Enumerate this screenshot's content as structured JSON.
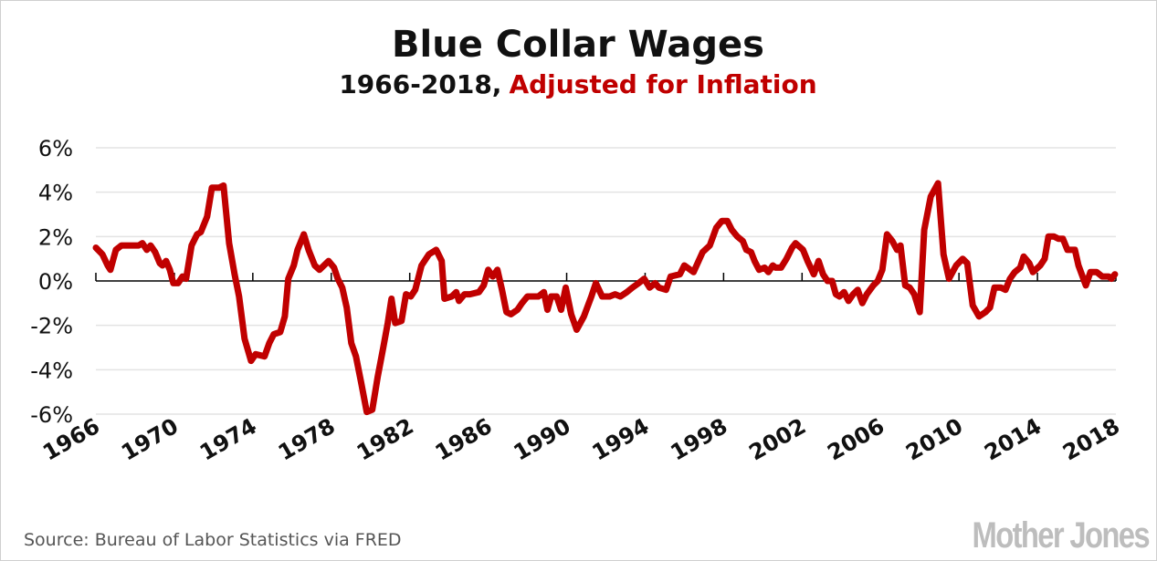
{
  "chart_data": {
    "type": "line",
    "title": "Blue Collar Wages",
    "subtitle_part1": "1966-2018,",
    "subtitle_part2": "Adjusted for Inflation",
    "xlabel": "",
    "ylabel": "",
    "xlim": [
      1966,
      2018
    ],
    "ylim": [
      -6,
      6
    ],
    "x_ticks": [
      "1966",
      "1970",
      "1974",
      "1978",
      "1982",
      "1986",
      "1990",
      "1994",
      "1998",
      "2002",
      "2006",
      "2010",
      "2014",
      "2018"
    ],
    "y_ticks": [
      "6%",
      "4%",
      "2%",
      "0%",
      "-2%",
      "-4%",
      "-6%"
    ],
    "grid": true,
    "line_color": "#c00000",
    "subtitle_accent_color": "#c00000",
    "series": [
      {
        "x": [
          1966.0,
          1966.33,
          1966.6,
          1966.74,
          1967.02,
          1967.3,
          1967.63,
          1967.95,
          1968.19,
          1968.37,
          1968.6,
          1968.79,
          1969.02,
          1969.26,
          1969.4,
          1969.58,
          1969.77,
          1969.95,
          1970.19,
          1970.42,
          1970.6,
          1970.88,
          1971.16,
          1971.35,
          1971.67,
          1971.91,
          1972.28,
          1972.51,
          1972.79,
          1973.07,
          1973.3,
          1973.58,
          1973.91,
          1974.14,
          1974.6,
          1974.84,
          1975.07,
          1975.4,
          1975.63,
          1975.81,
          1976.09,
          1976.28,
          1976.6,
          1976.84,
          1977.16,
          1977.4,
          1977.63,
          1977.86,
          1978.14,
          1978.33,
          1978.56,
          1978.79,
          1979.02,
          1979.26,
          1979.53,
          1979.81,
          1980.09,
          1980.37,
          1980.65,
          1980.88,
          1981.07,
          1981.26,
          1981.58,
          1981.81,
          1982.05,
          1982.28,
          1982.6,
          1982.98,
          1983.35,
          1983.63,
          1983.77,
          1984.14,
          1984.37,
          1984.51,
          1984.79,
          1985.07,
          1985.53,
          1985.77,
          1986.0,
          1986.23,
          1986.47,
          1986.7,
          1986.93,
          1987.16,
          1987.49,
          1987.72,
          1988.0,
          1988.23,
          1988.56,
          1988.84,
          1989.02,
          1989.21,
          1989.49,
          1989.72,
          1989.95,
          1990.23,
          1990.51,
          1990.88,
          1991.26,
          1991.49,
          1991.81,
          1992.19,
          1992.47,
          1992.74,
          1993.07,
          1993.35,
          1993.67,
          1993.95,
          1994.23,
          1994.51,
          1994.7,
          1995.07,
          1995.3,
          1995.77,
          1996.0,
          1996.47,
          1996.93,
          1997.3,
          1997.63,
          1997.91,
          1998.19,
          1998.42,
          1998.7,
          1998.98,
          1999.16,
          1999.4,
          1999.58,
          1999.81,
          2000.09,
          2000.28,
          2000.51,
          2000.65,
          2000.93,
          2001.21,
          2001.49,
          2001.67,
          2002.05,
          2002.28,
          2002.6,
          2002.84,
          2003.07,
          2003.3,
          2003.53,
          2003.72,
          2003.91,
          2004.14,
          2004.37,
          2004.6,
          2004.84,
          2005.07,
          2005.3,
          2005.63,
          2005.86,
          2006.09,
          2006.33,
          2006.6,
          2006.84,
          2007.02,
          2007.26,
          2007.49,
          2007.72,
          2008.0,
          2008.23,
          2008.56,
          2008.93,
          2009.21,
          2009.49,
          2009.86,
          2010.19,
          2010.42,
          2010.7,
          2011.02,
          2011.35,
          2011.58,
          2011.81,
          2012.14,
          2012.37,
          2012.6,
          2012.84,
          2013.12,
          2013.3,
          2013.58,
          2013.77,
          2014.14,
          2014.37,
          2014.56,
          2014.84,
          2015.07,
          2015.3,
          2015.53,
          2015.91,
          2016.09,
          2016.47,
          2016.7,
          2017.02,
          2017.3,
          2017.63,
          2017.77,
          2017.95
        ],
        "y": [
          1.5,
          1.2,
          0.7,
          0.5,
          1.4,
          1.6,
          1.6,
          1.6,
          1.6,
          1.7,
          1.4,
          1.6,
          1.3,
          0.8,
          0.7,
          0.9,
          0.5,
          -0.1,
          -0.1,
          0.2,
          0.1,
          1.6,
          2.1,
          2.2,
          2.9,
          4.2,
          4.2,
          4.3,
          1.7,
          0.3,
          -0.7,
          -2.6,
          -3.6,
          -3.3,
          -3.4,
          -2.8,
          -2.4,
          -2.3,
          -1.6,
          0.1,
          0.7,
          1.4,
          2.1,
          1.4,
          0.7,
          0.5,
          0.7,
          0.9,
          0.6,
          0.1,
          -0.3,
          -1.2,
          -2.8,
          -3.4,
          -4.6,
          -5.9,
          -5.8,
          -4.3,
          -3.0,
          -1.9,
          -0.8,
          -1.9,
          -1.8,
          -0.6,
          -0.7,
          -0.4,
          0.7,
          1.2,
          1.4,
          0.9,
          -0.8,
          -0.7,
          -0.5,
          -0.9,
          -0.6,
          -0.6,
          -0.5,
          -0.2,
          0.5,
          0.2,
          0.5,
          -0.4,
          -1.4,
          -1.5,
          -1.3,
          -1.0,
          -0.7,
          -0.7,
          -0.7,
          -0.5,
          -1.3,
          -0.7,
          -0.7,
          -1.3,
          -0.3,
          -1.5,
          -2.2,
          -1.6,
          -0.7,
          -0.1,
          -0.7,
          -0.7,
          -0.6,
          -0.7,
          -0.5,
          -0.3,
          -0.1,
          0.1,
          -0.3,
          -0.1,
          -0.3,
          -0.4,
          0.2,
          0.3,
          0.7,
          0.4,
          1.3,
          1.6,
          2.4,
          2.7,
          2.7,
          2.3,
          2.0,
          1.8,
          1.4,
          1.3,
          0.9,
          0.5,
          0.6,
          0.4,
          0.7,
          0.6,
          0.6,
          1.0,
          1.5,
          1.7,
          1.4,
          0.9,
          0.3,
          0.9,
          0.3,
          0.0,
          0.0,
          -0.6,
          -0.7,
          -0.5,
          -0.9,
          -0.6,
          -0.4,
          -1.0,
          -0.6,
          -0.2,
          0.0,
          0.5,
          2.1,
          1.8,
          1.4,
          1.6,
          -0.2,
          -0.3,
          -0.6,
          -1.4,
          2.3,
          3.8,
          4.4,
          1.2,
          0.1,
          0.7,
          1.0,
          0.8,
          -1.1,
          -1.6,
          -1.4,
          -1.2,
          -0.3,
          -0.3,
          -0.4,
          0.1,
          0.4,
          0.6,
          1.1,
          0.8,
          0.4,
          0.7,
          1.0,
          2.0,
          2.0,
          1.9,
          1.9,
          1.4,
          1.4,
          0.7,
          -0.2,
          0.4,
          0.4,
          0.2,
          0.2,
          0.1,
          0.3
        ]
      }
    ]
  },
  "source": "Source: Bureau of Labor Statistics via FRED",
  "logo_text": "Mother Jones"
}
